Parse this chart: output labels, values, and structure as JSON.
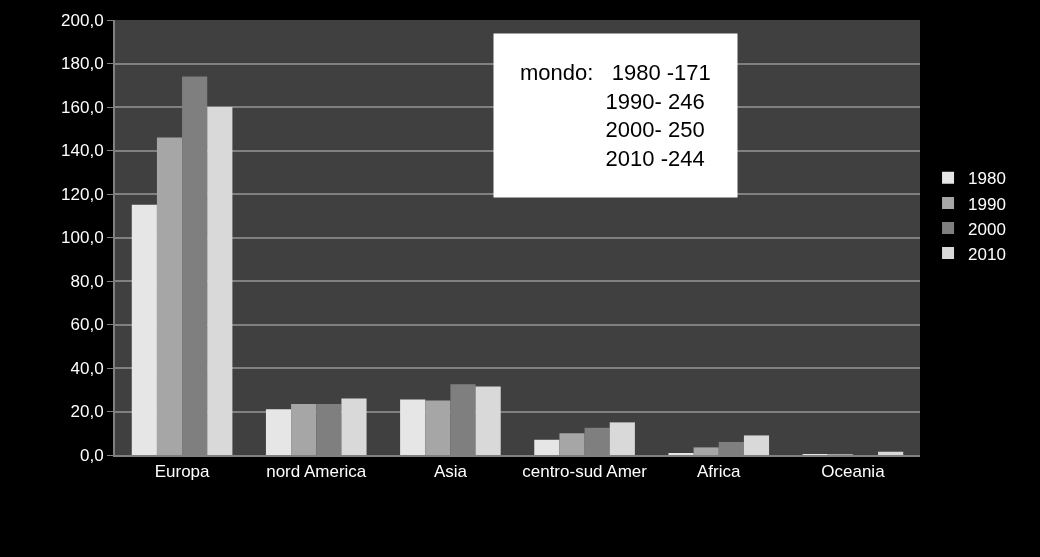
{
  "chart_data": {
    "type": "bar",
    "categories": [
      "Europa",
      "nord America",
      "Asia",
      "centro-sud Amer",
      "Africa",
      "Oceania"
    ],
    "series": [
      {
        "name": "1980",
        "color": "#e6e6e6",
        "values": [
          115,
          21,
          25.5,
          7,
          0.5,
          0.3
        ]
      },
      {
        "name": "1990",
        "color": "#a6a6a6",
        "values": [
          146,
          23.5,
          25,
          10,
          3.5,
          0.3
        ]
      },
      {
        "name": "2000",
        "color": "#7f7f7f",
        "values": [
          174,
          23.5,
          32.5,
          12.5,
          6,
          null
        ]
      },
      {
        "name": "2010",
        "color": "#d9d9d9",
        "values": [
          160,
          26,
          31.5,
          15,
          9,
          1.5
        ]
      }
    ],
    "ylim": [
      0,
      200
    ],
    "yticks": [
      {
        "value": 0,
        "label": "0,0"
      },
      {
        "value": 20,
        "label": "20,0"
      },
      {
        "value": 40,
        "label": "40,0"
      },
      {
        "value": 60,
        "label": "60,0"
      },
      {
        "value": 80,
        "label": "80,0"
      },
      {
        "value": 100,
        "label": "100,0"
      },
      {
        "value": 120,
        "label": "120,0"
      },
      {
        "value": 140,
        "label": "140,0"
      },
      {
        "value": 160,
        "label": "160,0"
      },
      {
        "value": 180,
        "label": "180,0"
      },
      {
        "value": 200,
        "label": "200,0"
      }
    ],
    "grid": "y",
    "legend": "right",
    "annotations": [
      "mondo:   1980 -171\n              1990- 246\n              2000- 250\n              2010 -244"
    ]
  }
}
